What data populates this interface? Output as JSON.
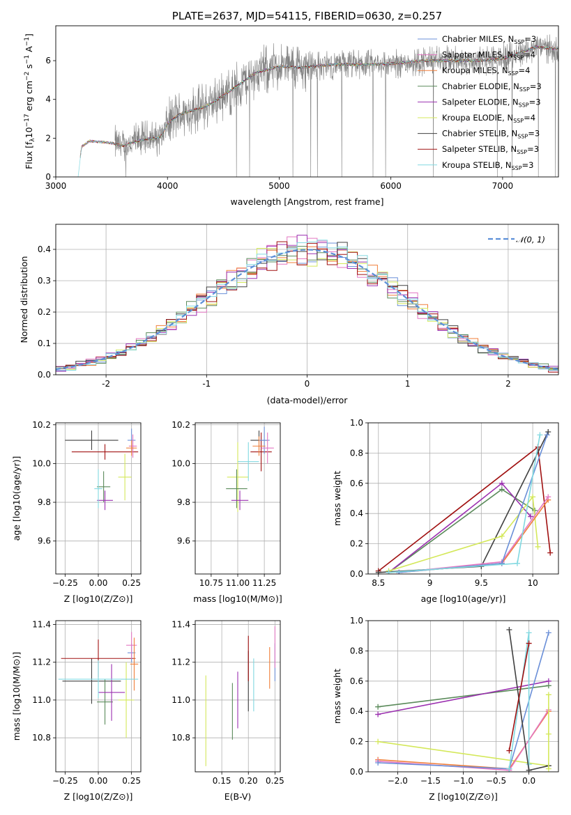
{
  "chart_data": [
    {
      "type": "line",
      "title": "PLATE=2637, MJD=54115, FIBERID=0630, z=0.257",
      "xlabel": "wavelength [Angstrom, rest frame]",
      "ylabel": "Flux [f_λ 10^-17 erg cm^-2 s^-1 A^-1]",
      "xlim": [
        3000,
        7500
      ],
      "ylim": [
        0,
        7.8
      ],
      "xticks": [
        3000,
        4000,
        5000,
        6000,
        7000
      ],
      "yticks": [
        0,
        2,
        4,
        6
      ],
      "grid": false,
      "legend_position": "top-right",
      "continuum": [
        [
          3200,
          0
        ],
        [
          3230,
          1.55
        ],
        [
          3300,
          1.85
        ],
        [
          3400,
          1.8
        ],
        [
          3500,
          1.75
        ],
        [
          3600,
          1.6
        ],
        [
          3700,
          1.8
        ],
        [
          3800,
          1.95
        ],
        [
          3900,
          2.0
        ],
        [
          3950,
          2.15
        ],
        [
          4000,
          2.75
        ],
        [
          4100,
          3.2
        ],
        [
          4200,
          3.4
        ],
        [
          4300,
          3.55
        ],
        [
          4400,
          3.8
        ],
        [
          4600,
          4.6
        ],
        [
          4800,
          5.4
        ],
        [
          5000,
          5.7
        ],
        [
          5200,
          5.65
        ],
        [
          5500,
          5.8
        ],
        [
          5800,
          5.8
        ],
        [
          6000,
          5.85
        ],
        [
          6300,
          6.0
        ],
        [
          6600,
          6.0
        ],
        [
          6800,
          6.0
        ],
        [
          7000,
          6.1
        ],
        [
          7200,
          6.5
        ],
        [
          7300,
          6.7
        ],
        [
          7500,
          6.6
        ]
      ],
      "legend": [
        {
          "label": "Chabrier MILES, N",
          "sub": "SSP",
          "tail": "=3",
          "color": "#6a8fd8"
        },
        {
          "label": "Salpeter MILES, N",
          "sub": "SSP",
          "tail": "=4",
          "color": "#e377c2"
        },
        {
          "label": "Kroupa MILES, N",
          "sub": "SSP",
          "tail": "=4",
          "color": "#f07f3a"
        },
        {
          "label": "Chabrier ELODIE, N",
          "sub": "SSP",
          "tail": "=3",
          "color": "#5a8a5a"
        },
        {
          "label": "Salpeter ELODIE, N",
          "sub": "SSP",
          "tail": "=3",
          "color": "#9b30b0"
        },
        {
          "label": "Kroupa ELODIE, N",
          "sub": "SSP",
          "tail": "=4",
          "color": "#d4e85a"
        },
        {
          "label": "Chabrier STELIB, N",
          "sub": "SSP",
          "tail": "=3",
          "color": "#404040"
        },
        {
          "label": "Salpeter STELIB, N",
          "sub": "SSP",
          "tail": "=3",
          "color": "#a01010"
        },
        {
          "label": "Kroupa STELIB, N",
          "sub": "SSP",
          "tail": "=3",
          "color": "#80d8e0"
        }
      ],
      "data_color": "#808080"
    },
    {
      "type": "line",
      "xlabel": "(data-model)/error",
      "ylabel": "Normed distribution",
      "xlim": [
        -2.5,
        2.5
      ],
      "ylim": [
        0,
        0.48
      ],
      "xticks": [
        -2,
        -1,
        0,
        1,
        2
      ],
      "yticks": [
        0.0,
        0.1,
        0.2,
        0.3,
        0.4
      ],
      "grid": true,
      "legend_position": "top-right",
      "legend_label": "𝒩(0, 1)",
      "gauss_color": "#5b8fd8",
      "hist_bins": [
        -2.5,
        2.5,
        0.1
      ],
      "hist_colors": [
        "#6a8fd8",
        "#e377c2",
        "#f07f3a",
        "#5a8a5a",
        "#9b30b0",
        "#d4e85a",
        "#404040",
        "#a01010",
        "#80d8e0"
      ]
    },
    {
      "type": "scatter",
      "xlabel": "Z [log10(Z/Z⊙)]",
      "ylabel": "age [log10(age/yr)]",
      "xlim": [
        -0.32,
        0.32
      ],
      "ylim": [
        9.43,
        10.21
      ],
      "xticks": [
        -0.25,
        0.0,
        0.25
      ],
      "xticklabels": [
        "−0.25",
        "0.00",
        "0.25"
      ],
      "yticks": [
        9.6,
        9.8,
        10.0,
        10.2
      ],
      "grid": true,
      "points": [
        {
          "x": -0.05,
          "y": 10.12,
          "xerr": 0.2,
          "yerr": 0.05,
          "color": "#404040"
        },
        {
          "x": 0.05,
          "y": 10.06,
          "xerr": 0.25,
          "yerr": 0.04,
          "color": "#a01010"
        },
        {
          "x": 0.25,
          "y": 10.12,
          "xerr": 0.03,
          "yerr": 0.06,
          "color": "#6a8fd8"
        },
        {
          "x": 0.26,
          "y": 10.09,
          "xerr": 0.03,
          "yerr": 0.06,
          "color": "#e377c2"
        },
        {
          "x": 0.25,
          "y": 10.08,
          "xerr": 0.04,
          "yerr": 0.04,
          "color": "#f07f3a"
        },
        {
          "x": 0.2,
          "y": 9.93,
          "xerr": 0.05,
          "yerr": 0.12,
          "color": "#d4e85a"
        },
        {
          "x": 0.04,
          "y": 9.88,
          "xerr": 0.05,
          "yerr": 0.08,
          "color": "#5a8a5a"
        },
        {
          "x": 0.05,
          "y": 9.81,
          "xerr": 0.06,
          "yerr": 0.05,
          "color": "#9b30b0"
        },
        {
          "x": 0.0,
          "y": 9.87,
          "xerr": 0.03,
          "yerr": 0.1,
          "color": "#80d8e0"
        }
      ]
    },
    {
      "type": "scatter",
      "xlabel": "mass [log10(M/M⊙)]",
      "ylim": [
        9.43,
        10.21
      ],
      "xlim": [
        10.6,
        11.4
      ],
      "xticks": [
        10.75,
        11.0,
        11.25
      ],
      "xticklabels": [
        "10.75",
        "11.00",
        "11.25"
      ],
      "yticks": [
        9.6,
        9.8,
        10.0,
        10.2
      ],
      "grid": true,
      "points": [
        {
          "x": 11.2,
          "y": 10.12,
          "xerr": 0.08,
          "yerr": 0.05,
          "color": "#404040"
        },
        {
          "x": 11.22,
          "y": 10.06,
          "xerr": 0.1,
          "yerr": 0.1,
          "color": "#a01010"
        },
        {
          "x": 11.25,
          "y": 10.12,
          "xerr": 0.05,
          "yerr": 0.07,
          "color": "#6a8fd8"
        },
        {
          "x": 11.28,
          "y": 10.08,
          "xerr": 0.06,
          "yerr": 0.08,
          "color": "#e377c2"
        },
        {
          "x": 11.2,
          "y": 10.09,
          "xerr": 0.06,
          "yerr": 0.05,
          "color": "#f07f3a"
        },
        {
          "x": 11.0,
          "y": 9.93,
          "xerr": 0.1,
          "yerr": 0.18,
          "color": "#d4e85a"
        },
        {
          "x": 10.99,
          "y": 9.87,
          "xerr": 0.1,
          "yerr": 0.1,
          "color": "#5a8a5a"
        },
        {
          "x": 11.02,
          "y": 9.81,
          "xerr": 0.08,
          "yerr": 0.05,
          "color": "#9b30b0"
        },
        {
          "x": 11.1,
          "y": 10.01,
          "xerr": 0.1,
          "yerr": 0.1,
          "color": "#80d8e0"
        }
      ]
    },
    {
      "type": "line",
      "xlabel": "age [log10(age/yr)]",
      "ylabel": "mass weight",
      "xlim": [
        8.4,
        10.25
      ],
      "ylim": [
        0,
        1.0
      ],
      "xticks": [
        8.5,
        9.0,
        9.5,
        10.0
      ],
      "yticks": [
        0.0,
        0.2,
        0.4,
        0.6,
        0.8,
        1.0
      ],
      "grid": true,
      "series": [
        {
          "color": "#a01010",
          "points": [
            [
              8.5,
              0.02
            ],
            [
              10.05,
              0.84
            ],
            [
              10.17,
              0.14
            ]
          ]
        },
        {
          "color": "#404040",
          "points": [
            [
              8.5,
              0.01
            ],
            [
              9.5,
              0.05
            ],
            [
              10.15,
              0.94
            ]
          ]
        },
        {
          "color": "#5a8a5a",
          "points": [
            [
              8.6,
              0.01
            ],
            [
              9.7,
              0.56
            ],
            [
              10.02,
              0.42
            ]
          ]
        },
        {
          "color": "#9b30b0",
          "points": [
            [
              8.6,
              0.01
            ],
            [
              9.7,
              0.6
            ],
            [
              9.98,
              0.38
            ]
          ]
        },
        {
          "color": "#d4e85a",
          "points": [
            [
              8.6,
              0.02
            ],
            [
              9.7,
              0.25
            ],
            [
              10.0,
              0.51
            ],
            [
              10.05,
              0.18
            ]
          ]
        },
        {
          "color": "#f07f3a",
          "points": [
            [
              8.7,
              0.01
            ],
            [
              9.7,
              0.07
            ],
            [
              10.15,
              0.49
            ]
          ]
        },
        {
          "color": "#e377c2",
          "points": [
            [
              8.7,
              0.01
            ],
            [
              9.7,
              0.08
            ],
            [
              10.15,
              0.51
            ]
          ]
        },
        {
          "color": "#6a8fd8",
          "points": [
            [
              8.7,
              0.01
            ],
            [
              9.7,
              0.07
            ],
            [
              10.14,
              0.92
            ]
          ]
        },
        {
          "color": "#80d8e0",
          "points": [
            [
              8.6,
              0.01
            ],
            [
              9.85,
              0.07
            ],
            [
              10.07,
              0.92
            ]
          ]
        }
      ]
    },
    {
      "type": "scatter",
      "xlabel": "Z [log10(Z/Z⊙)]",
      "ylabel": "mass [log10(M/M⊙)]",
      "xlim": [
        -0.32,
        0.32
      ],
      "ylim": [
        10.62,
        11.42
      ],
      "xticks": [
        -0.25,
        0.0,
        0.25
      ],
      "xticklabels": [
        "−0.25",
        "0.00",
        "0.25"
      ],
      "yticks": [
        10.8,
        11.0,
        11.2,
        11.4
      ],
      "grid": true,
      "points": [
        {
          "x": -0.05,
          "y": 11.1,
          "xerr": 0.22,
          "yerr": 0.12,
          "color": "#404040"
        },
        {
          "x": 0.0,
          "y": 11.22,
          "xerr": 0.28,
          "yerr": 0.1,
          "color": "#a01010"
        },
        {
          "x": 0.25,
          "y": 11.25,
          "xerr": 0.03,
          "yerr": 0.05,
          "color": "#6a8fd8"
        },
        {
          "x": 0.25,
          "y": 11.29,
          "xerr": 0.04,
          "yerr": 0.07,
          "color": "#e377c2"
        },
        {
          "x": 0.27,
          "y": 11.19,
          "xerr": 0.03,
          "yerr": 0.14,
          "color": "#f07f3a"
        },
        {
          "x": 0.21,
          "y": 11.0,
          "xerr": 0.06,
          "yerr": 0.2,
          "color": "#d4e85a"
        },
        {
          "x": 0.05,
          "y": 10.99,
          "xerr": 0.06,
          "yerr": 0.12,
          "color": "#5a8a5a"
        },
        {
          "x": 0.1,
          "y": 11.04,
          "xerr": 0.1,
          "yerr": 0.15,
          "color": "#9b30b0"
        },
        {
          "x": 0.0,
          "y": 11.11,
          "xerr": 0.3,
          "yerr": 0.1,
          "color": "#80d8e0"
        }
      ]
    },
    {
      "type": "scatter",
      "xlabel": "E(B-V)",
      "xlim": [
        0.1,
        0.26
      ],
      "ylim": [
        10.62,
        11.42
      ],
      "xticks": [
        0.15,
        0.2,
        0.25
      ],
      "xticklabels": [
        "0.15",
        "0.20",
        "0.25"
      ],
      "yticks": [
        10.8,
        11.0,
        11.2,
        11.4
      ],
      "grid": true,
      "points": [
        {
          "x": 0.2,
          "y": 11.1,
          "xerr": 0,
          "yerr": 0.16,
          "color": "#404040"
        },
        {
          "x": 0.2,
          "y": 11.22,
          "xerr": 0,
          "yerr": 0.12,
          "color": "#a01010"
        },
        {
          "x": 0.25,
          "y": 11.2,
          "xerr": 0,
          "yerr": 0.1,
          "color": "#6a8fd8"
        },
        {
          "x": 0.25,
          "y": 11.28,
          "xerr": 0,
          "yerr": 0.11,
          "color": "#e377c2"
        },
        {
          "x": 0.24,
          "y": 11.17,
          "xerr": 0,
          "yerr": 0.11,
          "color": "#f07f3a"
        },
        {
          "x": 0.12,
          "y": 10.89,
          "xerr": 0,
          "yerr": 0.24,
          "color": "#d4e85a"
        },
        {
          "x": 0.17,
          "y": 10.94,
          "xerr": 0,
          "yerr": 0.15,
          "color": "#5a8a5a"
        },
        {
          "x": 0.18,
          "y": 11.0,
          "xerr": 0,
          "yerr": 0.15,
          "color": "#9b30b0"
        },
        {
          "x": 0.21,
          "y": 11.08,
          "xerr": 0,
          "yerr": 0.14,
          "color": "#80d8e0"
        }
      ]
    },
    {
      "type": "line",
      "xlabel": "Z [log10(Z/Z⊙)]",
      "ylabel": "mass weight",
      "xlim": [
        -2.45,
        0.45
      ],
      "ylim": [
        0,
        1.0
      ],
      "xticks": [
        -2.0,
        -1.5,
        -1.0,
        -0.5,
        0.0
      ],
      "xticklabels": [
        "−2.0",
        "−1.5",
        "−1.0",
        "−0.5",
        "0.0"
      ],
      "yticks": [
        0.0,
        0.2,
        0.4,
        0.6,
        0.8,
        1.0
      ],
      "grid": true,
      "series": [
        {
          "color": "#5a8a5a",
          "points": [
            [
              -2.3,
              0.43
            ],
            [
              0.3,
              0.57
            ]
          ]
        },
        {
          "color": "#9b30b0",
          "points": [
            [
              -2.3,
              0.38
            ],
            [
              0.3,
              0.6
            ]
          ]
        },
        {
          "color": "#d4e85a",
          "points": [
            [
              -2.3,
              0.2
            ],
            [
              0.3,
              0.04
            ]
          ]
        },
        {
          "color": "#f07f3a",
          "points": [
            [
              -2.3,
              0.08
            ],
            [
              -0.3,
              0.02
            ],
            [
              0.3,
              0.4
            ]
          ]
        },
        {
          "color": "#e377c2",
          "points": [
            [
              -2.3,
              0.07
            ],
            [
              -0.3,
              0.01
            ],
            [
              0.3,
              0.41
            ]
          ]
        },
        {
          "color": "#6a8fd8",
          "points": [
            [
              -2.3,
              0.06
            ],
            [
              -0.3,
              0.02
            ],
            [
              0.3,
              0.92
            ]
          ]
        },
        {
          "color": "#80d8e0",
          "points": [
            [
              -0.3,
              0.02
            ],
            [
              0.0,
              0.92
            ],
            [
              0.0,
              0.05
            ]
          ]
        },
        {
          "color": "#404040",
          "points": [
            [
              -0.3,
              0.94
            ],
            [
              0.0,
              0.01
            ],
            [
              0.3,
              0.04
            ]
          ]
        },
        {
          "color": "#a01010",
          "points": [
            [
              -0.3,
              0.14
            ],
            [
              0.0,
              0.85
            ]
          ]
        },
        {
          "color": "#d4e85a",
          "points": [
            [
              0.3,
              0.51
            ],
            [
              0.3,
              0.25
            ],
            [
              0.3,
              0.02
            ]
          ]
        }
      ]
    }
  ]
}
